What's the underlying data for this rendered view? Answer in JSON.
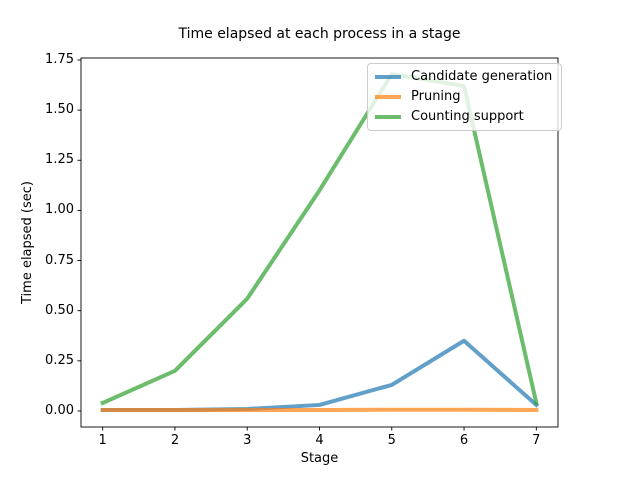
{
  "chart_data": {
    "type": "line",
    "title": "Time elapsed at each process in a stage",
    "xlabel": "Stage",
    "ylabel": "Time elapsed (sec)",
    "x": [
      1,
      2,
      3,
      4,
      5,
      6,
      7
    ],
    "xticks": [
      1,
      2,
      3,
      4,
      5,
      6,
      7
    ],
    "yticks": [
      0.0,
      0.25,
      0.5,
      0.75,
      1.0,
      1.25,
      1.5,
      1.75
    ],
    "xlim": [
      0.7,
      7.3
    ],
    "ylim": [
      -0.08,
      1.76
    ],
    "grid": false,
    "legend_position": "upper right",
    "line_width": 4,
    "line_alpha": 0.7,
    "background_color": "#ffffff",
    "spine_color": "#000000",
    "series": [
      {
        "name": "Candidate generation",
        "color": "#1f77b4",
        "values": [
          0.005,
          0.005,
          0.01,
          0.03,
          0.13,
          0.35,
          0.03
        ]
      },
      {
        "name": "Pruning",
        "color": "#ff7f0e",
        "values": [
          0.005,
          0.005,
          0.005,
          0.005,
          0.006,
          0.006,
          0.005
        ]
      },
      {
        "name": "Counting support",
        "color": "#2ca02c",
        "values": [
          0.04,
          0.2,
          0.56,
          1.1,
          1.68,
          1.62,
          0.04
        ]
      }
    ]
  }
}
